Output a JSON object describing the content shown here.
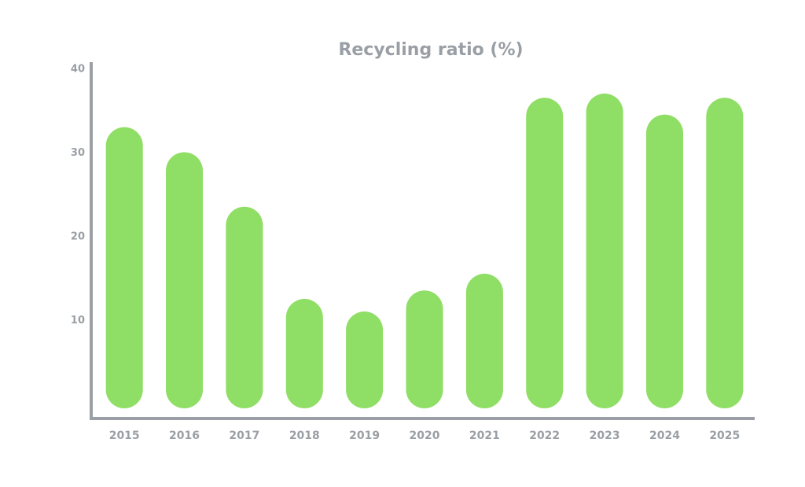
{
  "chart_data": {
    "type": "bar",
    "title": "Recycling ratio (%)",
    "xlabel": "",
    "ylabel": "",
    "categories": [
      "2015",
      "2016",
      "2017",
      "2018",
      "2019",
      "2020",
      "2021",
      "2022",
      "2023",
      "2024",
      "2025"
    ],
    "values": [
      33,
      30,
      23.5,
      12.5,
      11,
      13.5,
      15.5,
      36.5,
      37,
      34.5,
      36.5
    ],
    "ylim": [
      0,
      40
    ],
    "yticks": [
      10,
      20,
      30,
      40
    ],
    "grid": false,
    "legend": "none",
    "bar_color": "#8fde65",
    "axis_color": "#9a9fa5",
    "text_color": "#9a9fa5"
  }
}
